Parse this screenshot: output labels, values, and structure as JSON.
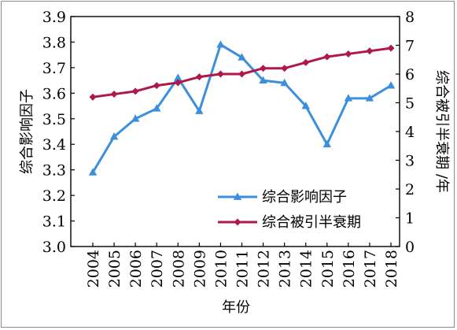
{
  "chart_data": {
    "type": "line",
    "x": [
      "2004",
      "2005",
      "2006",
      "2007",
      "2008",
      "2009",
      "2010",
      "2011",
      "2012",
      "2013",
      "2014",
      "2015",
      "2016",
      "2017",
      "2018"
    ],
    "xlabel": "年份",
    "ylabel_left": "综合影响因子",
    "ylabel_right": "综合被引半衰期 /年",
    "ylim_left": [
      3.0,
      3.9
    ],
    "ylim_right": [
      0,
      8
    ],
    "yticks_left": [
      "3.0",
      "3.1",
      "3.2",
      "3.3",
      "3.4",
      "3.5",
      "3.6",
      "3.7",
      "3.8",
      "3.9"
    ],
    "yticks_right": [
      "0",
      "1",
      "2",
      "3",
      "4",
      "5",
      "6",
      "7",
      "8"
    ],
    "grid": false,
    "legend_position": "bottom-right",
    "series": [
      {
        "name": "综合影响因子",
        "axis": "left",
        "color": "#3b8fdc",
        "marker": "triangle",
        "values": [
          3.29,
          3.43,
          3.5,
          3.54,
          3.66,
          3.53,
          3.79,
          3.74,
          3.65,
          3.64,
          3.55,
          3.4,
          3.58,
          3.58,
          3.63
        ]
      },
      {
        "name": "综合被引半衰期",
        "axis": "right",
        "color": "#b0184a",
        "marker": "diamond",
        "values": [
          5.2,
          5.3,
          5.4,
          5.6,
          5.7,
          5.9,
          6.0,
          6.0,
          6.2,
          6.2,
          6.4,
          6.6,
          6.7,
          6.8,
          6.9
        ]
      }
    ]
  }
}
